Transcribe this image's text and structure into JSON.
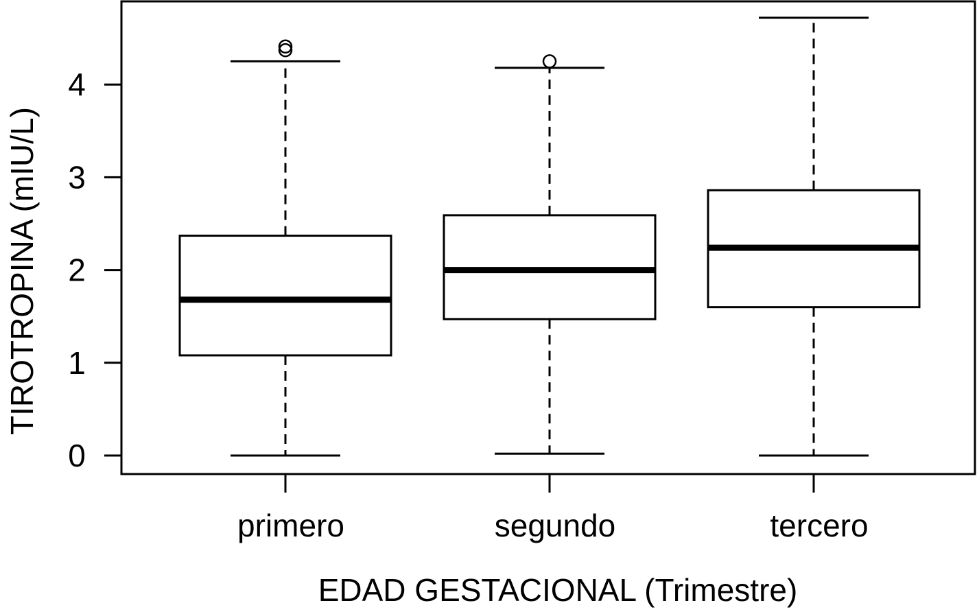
{
  "chart_data": {
    "type": "boxplot",
    "title": "",
    "xlabel": "EDAD GESTACIONAL (Trimestre)",
    "ylabel": "TIROTROPINA (mIU/L)",
    "categories": [
      "primero",
      "segundo",
      "tercero"
    ],
    "yticks": [
      "0",
      "1",
      "2",
      "3",
      "4"
    ],
    "ylim": [
      -0.2,
      4.9
    ],
    "grid": false,
    "legend": "none",
    "boxes": [
      {
        "category": "primero",
        "whisker_low": 0.0,
        "q1": 1.08,
        "median": 1.68,
        "q3": 2.37,
        "whisker_high": 4.25,
        "outliers": [
          4.37,
          4.41
        ]
      },
      {
        "category": "segundo",
        "whisker_low": 0.02,
        "q1": 1.47,
        "median": 2.0,
        "q3": 2.59,
        "whisker_high": 4.18,
        "outliers": [
          4.25
        ]
      },
      {
        "category": "tercero",
        "whisker_low": 0.0,
        "q1": 1.6,
        "median": 2.24,
        "q3": 2.86,
        "whisker_high": 4.72,
        "outliers": []
      }
    ]
  }
}
